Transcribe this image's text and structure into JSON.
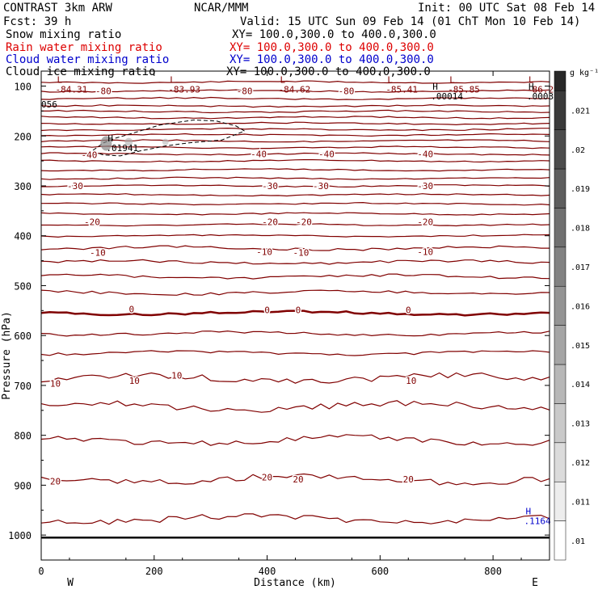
{
  "header": {
    "model": "CONTRAST  3km ARW",
    "center": "NCAR/MMM",
    "init": "Init: 00 UTC Sat 08 Feb 14",
    "fcst": "Fcst:    39 h",
    "valid": "Valid: 15 UTC Sun 09 Feb 14 (01 ChT Mon 10 Feb 14)"
  },
  "fields": [
    {
      "name": "Snow mixing ratio",
      "xy": "XY= 100.0,300.0 to 400.0,300.0",
      "color": "#000000"
    },
    {
      "name": "Rain water mixing ratio",
      "xy": "XY= 100.0,300.0 to 400.0,300.0",
      "color": "#dd0000"
    },
    {
      "name": "Cloud water mixing ratio",
      "xy": "XY= 100.0,300.0 to 400.0,300.0",
      "color": "#0000cc"
    },
    {
      "name": "Cloud ice mixing ratio",
      "xy": "XY= 100.0,300.0 to 400.0,300.0",
      "color": "#000000"
    }
  ],
  "colorbar": {
    "unit": "g kg⁻¹",
    "ticks": [
      ".01",
      ".011",
      ".012",
      ".013",
      ".014",
      ".015",
      ".016",
      ".017",
      ".018",
      ".019",
      ".02",
      ".021"
    ]
  },
  "chart_data": {
    "type": "heatmap",
    "xlabel": "Distance (km)",
    "ylabel": "Pressure (hPa)",
    "xlim": [
      0,
      900
    ],
    "ylim": [
      1050,
      70
    ],
    "x_ticks": [
      "0",
      "200",
      "400",
      "600",
      "800"
    ],
    "x_tick_values": [
      0,
      200,
      400,
      600,
      800
    ],
    "y_ticks": [
      "100",
      "200",
      "300",
      "400",
      "500",
      "600",
      "700",
      "800",
      "900",
      "1000"
    ],
    "y_tick_values": [
      100,
      200,
      300,
      400,
      500,
      600,
      700,
      800,
      900,
      1000
    ],
    "side_labels": {
      "left": "W",
      "right": "E"
    },
    "temperature_contours": {
      "color": "#800000",
      "levels_p": [
        92,
        110,
        125,
        140,
        151,
        163,
        175,
        187,
        198,
        210,
        223,
        236,
        250,
        268,
        285,
        300,
        318,
        336,
        356,
        378,
        400,
        425,
        453,
        482,
        514,
        555,
        596,
        635,
        686,
        742,
        810,
        888,
        968
      ],
      "zero_level_p": 555
    },
    "contour_labels": [
      {
        "text": "-80",
        "x": 110,
        "p": 110
      },
      {
        "text": "-80",
        "x": 360,
        "p": 110
      },
      {
        "text": "-80",
        "x": 540,
        "p": 110
      },
      {
        "text": "-40",
        "x": 85,
        "p": 238
      },
      {
        "text": "-40",
        "x": 385,
        "p": 236
      },
      {
        "text": "-40",
        "x": 505,
        "p": 236
      },
      {
        "text": "-40",
        "x": 680,
        "p": 236
      },
      {
        "text": "-30",
        "x": 60,
        "p": 300
      },
      {
        "text": "-30",
        "x": 405,
        "p": 300
      },
      {
        "text": "-30",
        "x": 495,
        "p": 300
      },
      {
        "text": "-30",
        "x": 680,
        "p": 300
      },
      {
        "text": "-20",
        "x": 90,
        "p": 372
      },
      {
        "text": "-20",
        "x": 405,
        "p": 372
      },
      {
        "text": "-20",
        "x": 465,
        "p": 372
      },
      {
        "text": "-20",
        "x": 680,
        "p": 372
      },
      {
        "text": "-10",
        "x": 100,
        "p": 434
      },
      {
        "text": "-10",
        "x": 395,
        "p": 432
      },
      {
        "text": "-10",
        "x": 460,
        "p": 434
      },
      {
        "text": "-10",
        "x": 680,
        "p": 432
      },
      {
        "text": "0",
        "x": 160,
        "p": 547
      },
      {
        "text": "0",
        "x": 400,
        "p": 549
      },
      {
        "text": "0",
        "x": 455,
        "p": 549
      },
      {
        "text": "0",
        "x": 650,
        "p": 549
      },
      {
        "text": "10",
        "x": 25,
        "p": 696
      },
      {
        "text": "10",
        "x": 165,
        "p": 690
      },
      {
        "text": "10",
        "x": 240,
        "p": 680
      },
      {
        "text": "10",
        "x": 655,
        "p": 690
      },
      {
        "text": "20",
        "x": 25,
        "p": 892
      },
      {
        "text": "20",
        "x": 400,
        "p": 884
      },
      {
        "text": "20",
        "x": 455,
        "p": 888
      },
      {
        "text": "20",
        "x": 650,
        "p": 888
      }
    ],
    "extrema": [
      {
        "mark": "L",
        "value": "-84.31",
        "x": 25,
        "p": 100
      },
      {
        "mark": "L",
        "value": "-83.93",
        "x": 225,
        "p": 100
      },
      {
        "mark": "L",
        "value": "-84.62",
        "x": 420,
        "p": 100
      },
      {
        "mark": "L",
        "value": "-85.41",
        "x": 610,
        "p": 100
      },
      {
        "mark": "L",
        "value": "-85.85",
        "x": 720,
        "p": 100
      },
      {
        "mark": "L",
        "value": "-86.29",
        "x": 860,
        "p": 100
      },
      {
        "mark": "H",
        "value": ".00014",
        "x": 690,
        "p": 114
      },
      {
        "mark": "H",
        "value": ".0003",
        "x": 860,
        "p": 114
      },
      {
        "mark": "",
        "value": "056",
        "x": 0,
        "p": 130
      },
      {
        "mark": "H",
        "value": ".01941",
        "x": 115,
        "p": 217
      },
      {
        "mark": "H",
        "value": ".1164",
        "x": 855,
        "p": 965
      }
    ],
    "snow_maximum": {
      "x": 115,
      "p": 215
    }
  }
}
